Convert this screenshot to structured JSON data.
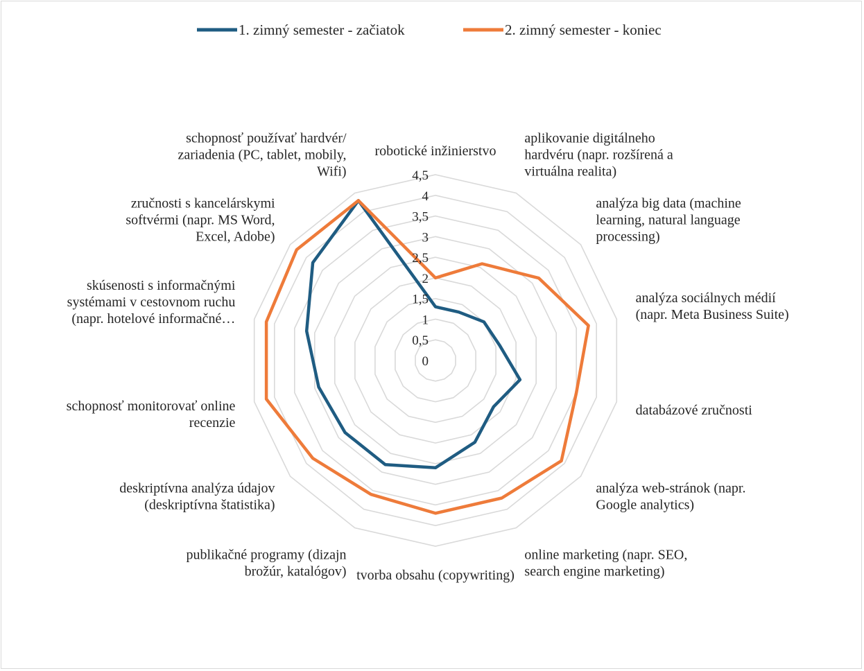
{
  "chart_data": {
    "type": "radar",
    "title": "",
    "legend_position": "top",
    "r_range": [
      0,
      4.5
    ],
    "r_ticks": [
      "0",
      "0,5",
      "1",
      "1,5",
      "2",
      "2,5",
      "3",
      "3,5",
      "4",
      "4,5"
    ],
    "grid": true,
    "categories": [
      [
        "robotické inžinierstvo"
      ],
      [
        "aplikovanie digitálneho",
        "hardvéru (napr. rozšírená a",
        "virtuálna realita)"
      ],
      [
        "analýza big data (machine",
        "learning, natural language",
        "processing)"
      ],
      [
        "analýza sociálnych médií",
        "(napr. Meta Business Suite)"
      ],
      [
        "databázové zručnosti"
      ],
      [
        "analýza web-stránok (napr.",
        "Google analytics)"
      ],
      [
        "online marketing (napr. SEO,",
        "search engine marketing)"
      ],
      [
        "tvorba obsahu (copywriting)"
      ],
      [
        "publikačné programy (dizajn",
        "brožúr, katalógov)"
      ],
      [
        "deskriptívna analýza údajov",
        "(deskriptívna štatistika)"
      ],
      [
        "schopnosť monitorovať online",
        "recenzie"
      ],
      [
        "skúsenosti s informačnými",
        "systémami v cestovnom ruchu",
        "(napr. hotelové informačné…"
      ],
      [
        "zručnosti s kancelárskymi",
        "softvérmi (napr. MS Word,",
        "Excel, Adobe)"
      ],
      [
        "schopnosť používať hardvér/",
        "zariadenia (PC, tablet, mobily,",
        "Wifi)"
      ]
    ],
    "series": [
      {
        "name": "1. zimný semester - začiatok",
        "color": "#1f5c82",
        "values": [
          1.3,
          1.3,
          1.5,
          1.6,
          2.1,
          1.8,
          2.2,
          2.6,
          2.8,
          2.8,
          2.9,
          3.2,
          3.8,
          4.3
        ]
      },
      {
        "name": "2. zimný semester - koniec",
        "color": "#ee7b3a",
        "values": [
          2.0,
          2.6,
          3.2,
          3.8,
          3.5,
          3.9,
          3.7,
          3.7,
          3.6,
          3.8,
          4.2,
          4.2,
          4.3,
          4.3
        ]
      }
    ]
  }
}
